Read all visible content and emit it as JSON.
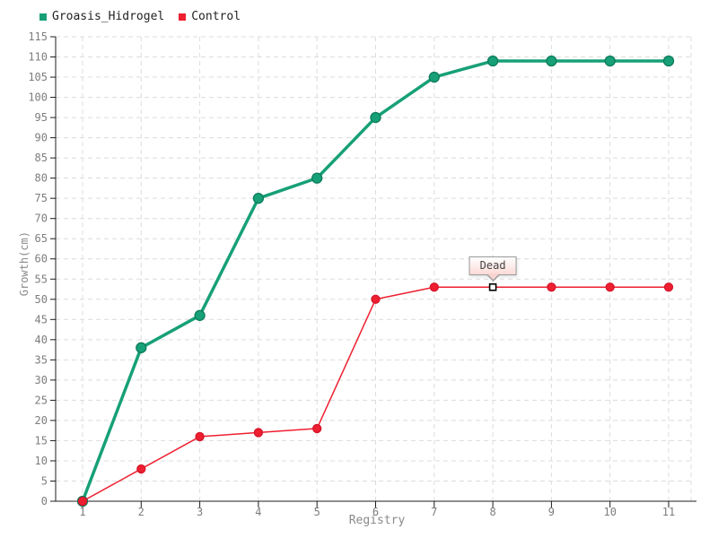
{
  "chart": {
    "legend": [
      {
        "label": "Groasis_Hidrogel",
        "color": "#17a077"
      },
      {
        "label": "Control",
        "color": "#ee1f30"
      }
    ],
    "xlabel": "Registry",
    "ylabel": "Growth(cm)"
  },
  "chart_data": {
    "type": "line",
    "title": "",
    "xlabel": "Registry",
    "ylabel": "Growth(cm)",
    "x": [
      1,
      2,
      3,
      4,
      5,
      6,
      7,
      8,
      9,
      10,
      11
    ],
    "x_ticks": [
      "1",
      "2",
      "3",
      "4",
      "5",
      "6",
      "7",
      "8",
      "9",
      "10",
      "11"
    ],
    "y_ticks": [
      0,
      5,
      10,
      15,
      20,
      25,
      30,
      35,
      40,
      45,
      50,
      55,
      60,
      65,
      70,
      75,
      80,
      85,
      90,
      95,
      100,
      105,
      110,
      115
    ],
    "ylim": [
      0,
      115
    ],
    "grid": true,
    "legend_position": "top-left",
    "series": [
      {
        "name": "Groasis_Hidrogel",
        "color": "#17a077",
        "marker_stroke": "#0d7c5a",
        "values": [
          0,
          38,
          46,
          75,
          80,
          95,
          105,
          109,
          109,
          109,
          109
        ]
      },
      {
        "name": "Control",
        "color": "#ee1f30",
        "marker_stroke": "#d5152a",
        "values": [
          0,
          8,
          16,
          17,
          18,
          50,
          53,
          53,
          53,
          53,
          53
        ]
      }
    ],
    "annotation": {
      "label": "Dead",
      "series": "Control",
      "x": 8,
      "y": 53
    },
    "colors": {
      "axis": "#1c1c1c",
      "grid": "#dcdcdc",
      "tick_text": "#7d7d7d",
      "tooltip_border": "#9a9a9a",
      "tooltip_bg_top": "#ffffff",
      "tooltip_bg_bottom": "#fbdad6"
    }
  }
}
